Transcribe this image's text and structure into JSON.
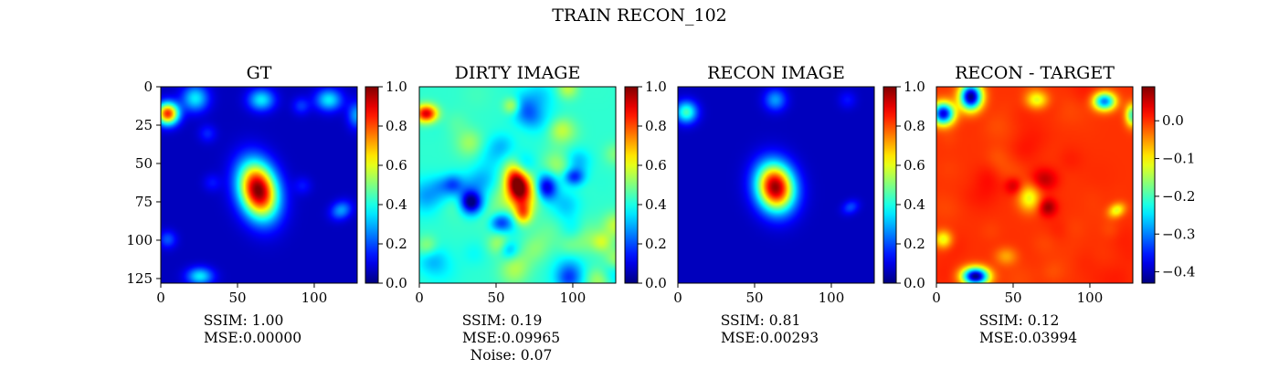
{
  "figure": {
    "title": "TRAIN RECON_102"
  },
  "chart_data": [
    {
      "type": "heatmap",
      "title": "GT",
      "caption": [
        "SSIM: 1.00",
        "MSE:0.00000"
      ],
      "x_ticks": [
        0,
        50,
        100
      ],
      "y_ticks": [
        0,
        25,
        50,
        75,
        100,
        125
      ],
      "xlim": [
        0,
        128
      ],
      "ylim": [
        128,
        0
      ],
      "colorbar": {
        "range": [
          0.0,
          1.0
        ],
        "ticks": [
          "0.0",
          "0.2",
          "0.4",
          "0.6",
          "0.8",
          "1.0"
        ],
        "tick_values": [
          0.0,
          0.2,
          0.4,
          0.6,
          0.8,
          1.0
        ]
      },
      "colormap": "jet",
      "background_value": 0.06,
      "blobs": [
        {
          "x": 63,
          "y": 67,
          "sx": 8.5,
          "sy": 13,
          "theta": 0.25,
          "amp": 0.95
        },
        {
          "x": 4,
          "y": 17,
          "sx": 5,
          "sy": 5,
          "theta": 0,
          "amp": 0.78
        },
        {
          "x": 22,
          "y": 7,
          "sx": 6,
          "sy": 6,
          "theta": 0,
          "amp": 0.3
        },
        {
          "x": 65,
          "y": 8,
          "sx": 6,
          "sy": 5,
          "theta": 0,
          "amp": 0.3
        },
        {
          "x": 109,
          "y": 8,
          "sx": 6,
          "sy": 5,
          "theta": 0,
          "amp": 0.3
        },
        {
          "x": 91,
          "y": 12,
          "sx": 4,
          "sy": 4,
          "theta": 0,
          "amp": 0.12
        },
        {
          "x": 127,
          "y": 18,
          "sx": 4,
          "sy": 6,
          "theta": 0,
          "amp": 0.22
        },
        {
          "x": 30,
          "y": 30,
          "sx": 4,
          "sy": 4,
          "theta": 0,
          "amp": 0.1
        },
        {
          "x": 117,
          "y": 80,
          "sx": 5,
          "sy": 4,
          "theta": 0.5,
          "amp": 0.22
        },
        {
          "x": 4,
          "y": 99,
          "sx": 4,
          "sy": 4,
          "theta": 0,
          "amp": 0.15
        },
        {
          "x": 25,
          "y": 123,
          "sx": 6,
          "sy": 4,
          "theta": 0,
          "amp": 0.3
        },
        {
          "x": 33,
          "y": 62,
          "sx": 4,
          "sy": 4,
          "theta": 0,
          "amp": 0.08
        },
        {
          "x": 92,
          "y": 64,
          "sx": 4,
          "sy": 4,
          "theta": 0,
          "amp": 0.08
        }
      ]
    },
    {
      "type": "heatmap",
      "title": "DIRTY IMAGE",
      "caption": [
        "SSIM: 0.19",
        "MSE:0.09965",
        "Noise: 0.07"
      ],
      "x_ticks": [
        0,
        50,
        100
      ],
      "y_ticks": [],
      "xlim": [
        0,
        128
      ],
      "ylim": [
        128,
        0
      ],
      "colorbar": {
        "range": [
          0.0,
          1.0
        ],
        "ticks": [
          "0.0",
          "0.2",
          "0.4",
          "0.6",
          "0.8",
          "1.0"
        ],
        "tick_values": [
          0.0,
          0.2,
          0.4,
          0.6,
          0.8,
          1.0
        ]
      },
      "colormap": "jet",
      "background_value": 0.42,
      "noise": 0.16,
      "blobs": [
        {
          "x": 63,
          "y": 62,
          "sx": 5,
          "sy": 9,
          "theta": 0.2,
          "amp": 0.55
        },
        {
          "x": 67,
          "y": 82,
          "sx": 4,
          "sy": 5,
          "theta": 0,
          "amp": 0.3
        },
        {
          "x": 4,
          "y": 17,
          "sx": 5,
          "sy": 4,
          "theta": 0,
          "amp": 0.5
        },
        {
          "x": 33,
          "y": 75,
          "sx": 5,
          "sy": 5,
          "theta": 0,
          "amp": -0.38
        },
        {
          "x": 82,
          "y": 65,
          "sx": 5,
          "sy": 6,
          "theta": 0,
          "amp": -0.38
        },
        {
          "x": 100,
          "y": 58,
          "sx": 5,
          "sy": 4,
          "theta": 0,
          "amp": -0.3
        },
        {
          "x": 52,
          "y": 88,
          "sx": 5,
          "sy": 4,
          "theta": 0,
          "amp": -0.2
        },
        {
          "x": 60,
          "y": 12,
          "sx": 4,
          "sy": 4,
          "theta": 0,
          "amp": 0.2
        }
      ]
    },
    {
      "type": "heatmap",
      "title": "RECON IMAGE",
      "caption": [
        "SSIM: 0.81",
        "MSE:0.00293"
      ],
      "x_ticks": [
        0,
        50,
        100
      ],
      "y_ticks": [],
      "xlim": [
        0,
        128
      ],
      "ylim": [
        128,
        0
      ],
      "colorbar": {
        "range": [
          0.0,
          1.0
        ],
        "ticks": [
          "0.0",
          "0.2",
          "0.4",
          "0.6",
          "0.8",
          "1.0"
        ],
        "tick_values": [
          0.0,
          0.2,
          0.4,
          0.6,
          0.8,
          1.0
        ]
      },
      "colormap": "jet",
      "background_value": 0.06,
      "blobs": [
        {
          "x": 63,
          "y": 65,
          "sx": 8.5,
          "sy": 11,
          "theta": 0.2,
          "amp": 0.92
        },
        {
          "x": 5,
          "y": 16,
          "sx": 5,
          "sy": 5,
          "theta": 0,
          "amp": 0.38
        },
        {
          "x": 63,
          "y": 8,
          "sx": 5,
          "sy": 5,
          "theta": 0,
          "amp": 0.22
        },
        {
          "x": 112,
          "y": 78,
          "sx": 4,
          "sy": 3,
          "theta": 0.5,
          "amp": 0.14
        },
        {
          "x": 110,
          "y": 8,
          "sx": 4,
          "sy": 4,
          "theta": 0,
          "amp": 0.08
        }
      ]
    },
    {
      "type": "heatmap",
      "title": "RECON - TARGET",
      "caption": [
        "SSIM: 0.12",
        "MSE:0.03994"
      ],
      "x_ticks": [
        0,
        50,
        100
      ],
      "y_ticks": [],
      "xlim": [
        0,
        128
      ],
      "ylim": [
        128,
        0
      ],
      "colorbar": {
        "range": [
          -0.43,
          0.09
        ],
        "ticks": [
          "−0.4",
          "−0.3",
          "−0.2",
          "−0.1",
          "0.0"
        ],
        "tick_values": [
          -0.4,
          -0.3,
          -0.2,
          -0.1,
          0.0
        ]
      },
      "colormap": "jet",
      "background_value": 0.0,
      "noise": 0.012,
      "blobs": [
        {
          "x": 22,
          "y": 6,
          "sx": 5,
          "sy": 6,
          "theta": 0,
          "amp": -0.43
        },
        {
          "x": 25,
          "y": 123,
          "sx": 6,
          "sy": 4,
          "theta": 0,
          "amp": -0.43
        },
        {
          "x": 4,
          "y": 17,
          "sx": 5,
          "sy": 5,
          "theta": 0,
          "amp": -0.38
        },
        {
          "x": 109,
          "y": 9,
          "sx": 5,
          "sy": 4,
          "theta": 0,
          "amp": -0.3
        },
        {
          "x": 65,
          "y": 8,
          "sx": 5,
          "sy": 4,
          "theta": 0,
          "amp": -0.12
        },
        {
          "x": 127,
          "y": 18,
          "sx": 3,
          "sy": 5,
          "theta": 0,
          "amp": -0.2
        },
        {
          "x": 60,
          "y": 72,
          "sx": 5,
          "sy": 6,
          "theta": 0,
          "amp": -0.12
        },
        {
          "x": 117,
          "y": 80,
          "sx": 4,
          "sy": 3,
          "theta": 0.5,
          "amp": -0.12
        },
        {
          "x": 4,
          "y": 99,
          "sx": 4,
          "sy": 4,
          "theta": 0,
          "amp": -0.12
        },
        {
          "x": 45,
          "y": 110,
          "sx": 5,
          "sy": 4,
          "theta": 0,
          "amp": -0.06
        },
        {
          "x": 70,
          "y": 60,
          "sx": 6,
          "sy": 5,
          "theta": 0,
          "amp": 0.06
        },
        {
          "x": 72,
          "y": 78,
          "sx": 4,
          "sy": 4,
          "theta": 0,
          "amp": 0.08
        },
        {
          "x": 50,
          "y": 64,
          "sx": 4,
          "sy": 4,
          "theta": 0,
          "amp": 0.06
        }
      ]
    }
  ]
}
